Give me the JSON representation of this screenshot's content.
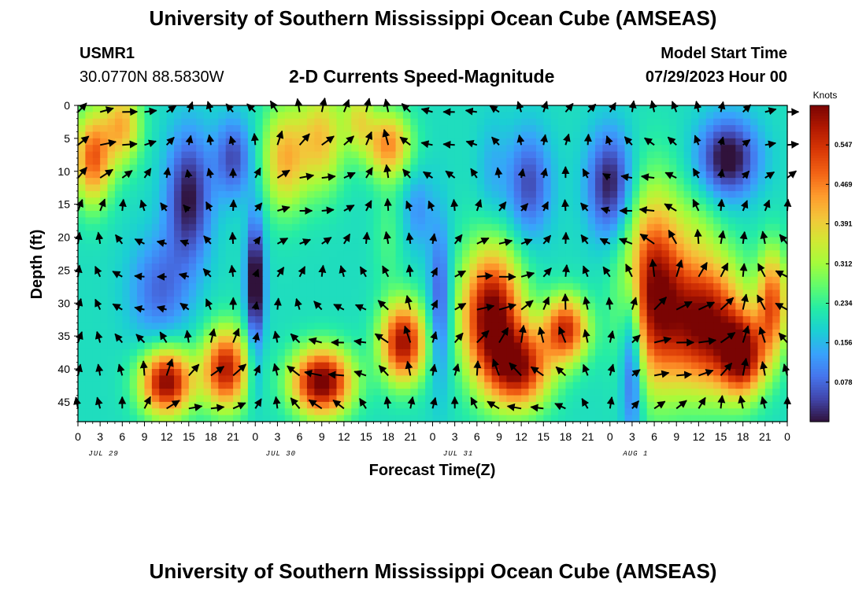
{
  "page": {
    "title": "University of Southern Mississippi Ocean Cube (AMSEAS)",
    "footer_title": "University of Southern Mississippi Ocean Cube (AMSEAS)",
    "station_id": "USMR1",
    "station_coords": "30.0770N  88.5830W",
    "subtitle": "2-D Currents Speed-Magnitude",
    "model_start_label": "Model Start Time",
    "model_start_value": "07/29/2023 Hour 00"
  },
  "colors": {
    "ramp": [
      "#30123b",
      "#4145ab",
      "#4675ed",
      "#39a2fc",
      "#1bcfd4",
      "#24eca6",
      "#61fc6c",
      "#a4fc3b",
      "#d1e834",
      "#f3c63a",
      "#fe9b2d",
      "#f36315",
      "#d93806",
      "#b11901",
      "#7a0403"
    ]
  },
  "chart_data": {
    "type": "heatmap",
    "title": "2-D Currents Speed-Magnitude",
    "xlabel": "Forecast Time(Z)",
    "ylabel": "Depth (ft)",
    "x_tick_labels": [
      "0",
      "3",
      "6",
      "9",
      "12",
      "15",
      "18",
      "21",
      "0",
      "3",
      "6",
      "9",
      "12",
      "15",
      "18",
      "21",
      "0",
      "3",
      "6",
      "9",
      "12",
      "15",
      "18",
      "21",
      "0",
      "3",
      "6",
      "9",
      "12",
      "15",
      "18",
      "21",
      "0"
    ],
    "date_labels": [
      "JUL 29",
      "JUL 30",
      "JUL 31",
      "AUG 1"
    ],
    "xlim": [
      0,
      96
    ],
    "ylim": [
      0,
      48
    ],
    "y_ticks": [
      0,
      5,
      10,
      15,
      20,
      25,
      30,
      35,
      40,
      45
    ],
    "y_tick_labels": [
      "0",
      "5",
      "10",
      "15",
      "20",
      "25",
      "30",
      "35",
      "40",
      "45"
    ],
    "colorbar": {
      "unit": "Knots",
      "ticks": [
        "0.547",
        "0.469",
        "0.391",
        "0.312",
        "0.234",
        "0.156",
        "0.078"
      ],
      "tick_values": [
        0.547,
        0.469,
        0.391,
        0.312,
        0.234,
        0.156,
        0.078
      ],
      "range": [
        0,
        0.625
      ]
    },
    "series": [
      {
        "name": "speed_blobs",
        "note": "dominant high/low speed regions as (hour, depth ft, amplitude knots, spread hours, spread ft)",
        "values": [
          [
            2,
            8,
            0.3,
            2.5,
            7
          ],
          [
            6,
            3,
            0.22,
            2.5,
            6
          ],
          [
            12,
            42,
            0.42,
            3.5,
            5
          ],
          [
            20,
            40,
            0.38,
            3,
            6
          ],
          [
            11,
            28,
            -0.12,
            4,
            8
          ],
          [
            15,
            14,
            -0.2,
            3,
            10
          ],
          [
            21,
            8,
            -0.15,
            2.5,
            6
          ],
          [
            24,
            27,
            -0.25,
            1.2,
            10
          ],
          [
            28,
            8,
            0.22,
            3,
            8
          ],
          [
            33,
            5,
            0.2,
            3,
            8
          ],
          [
            38,
            2,
            0.15,
            2,
            5
          ],
          [
            33,
            42,
            0.45,
            4,
            5
          ],
          [
            44,
            36,
            0.4,
            3,
            6
          ],
          [
            42,
            20,
            0.05,
            2,
            8
          ],
          [
            42,
            6,
            0.26,
            3,
            5
          ],
          [
            46,
            16,
            -0.08,
            2,
            6
          ],
          [
            49,
            30,
            -0.15,
            1.5,
            12
          ],
          [
            56,
            32,
            0.45,
            4,
            10
          ],
          [
            60,
            40,
            0.35,
            4,
            6
          ],
          [
            66,
            34,
            0.35,
            3,
            5
          ],
          [
            56,
            10,
            -0.05,
            2,
            8
          ],
          [
            61,
            12,
            -0.15,
            3,
            8
          ],
          [
            72,
            12,
            -0.2,
            3,
            8
          ],
          [
            78,
            28,
            0.4,
            4,
            14
          ],
          [
            85,
            33,
            0.42,
            5,
            10
          ],
          [
            90,
            38,
            0.38,
            3,
            6
          ],
          [
            94,
            30,
            0.3,
            2,
            8
          ],
          [
            88,
            8,
            -0.22,
            4,
            6
          ],
          [
            84,
            18,
            0.05,
            3,
            6
          ],
          [
            75,
            38,
            -0.2,
            1.5,
            12
          ],
          [
            24,
            42,
            -0.05,
            1,
            4
          ]
        ]
      }
    ],
    "vectors": {
      "x_step_hours": 3,
      "y_step_ft": 5,
      "first_row_ft": 1
    }
  }
}
